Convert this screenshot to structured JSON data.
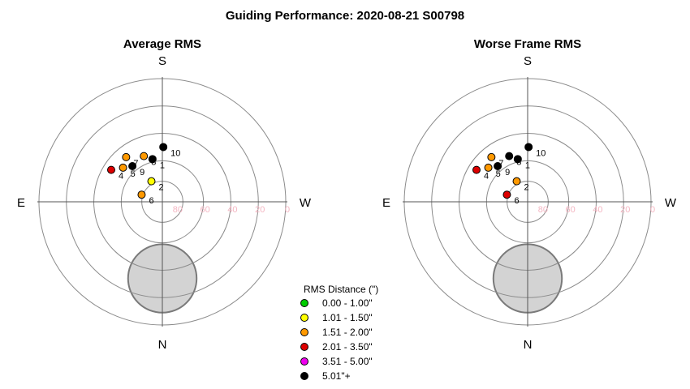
{
  "title": "Guiding Performance: 2020-08-21 S00798",
  "colors": {
    "ring": "#8c8c8c",
    "axis": "#555555",
    "tick_label": "#f4b6c2",
    "moon_fill": "#d3d3d3",
    "moon_edge": "#7a7a7a"
  },
  "legend": {
    "title": "RMS Distance (\")",
    "items": [
      {
        "label": "0.00 - 1.00\"",
        "color": "#00cc00"
      },
      {
        "label": "1.01 - 1.50\"",
        "color": "#ffff00"
      },
      {
        "label": "1.51 - 2.00\"",
        "color": "#ff9900"
      },
      {
        "label": "2.01 - 3.50\"",
        "color": "#dd0000"
      },
      {
        "label": "3.51 - 5.00\"",
        "color": "#ee00ee"
      },
      {
        "label": "5.01\"+",
        "color": "#000000"
      }
    ]
  },
  "chart_data": [
    {
      "type": "scatter",
      "projection": "polar altitude-azimuth",
      "title": "Average RMS",
      "directions": {
        "top": "S",
        "bottom": "N",
        "left": "E",
        "right": "W"
      },
      "radial_ticks": [
        "80",
        "60",
        "40",
        "20",
        "0"
      ],
      "r_axis": {
        "label_positions": [
          80,
          60,
          40,
          20,
          0
        ],
        "rings": [
          75,
          60,
          40,
          20,
          0
        ],
        "range": [
          90,
          0
        ]
      },
      "moon": {
        "altitude": 34,
        "azimuth": 180,
        "radius_deg": 25
      },
      "points": [
        {
          "label": "1",
          "altitude": 58,
          "azimuth": 13,
          "color": "#000000"
        },
        {
          "label": "2",
          "altitude": 73,
          "azimuth": 28,
          "color": "#ffff00"
        },
        {
          "label": "4",
          "altitude": 46,
          "azimuth": 58,
          "color": "#dd0000"
        },
        {
          "label": "5",
          "altitude": 52,
          "azimuth": 49,
          "color": "#ff9900"
        },
        {
          "label": "6",
          "altitude": 74,
          "azimuth": 71,
          "color": "#ff9900"
        },
        {
          "label": "7",
          "altitude": 48,
          "azimuth": 39,
          "color": "#ff9900"
        },
        {
          "label": "8",
          "altitude": 54,
          "azimuth": 22,
          "color": "#ff9900"
        },
        {
          "label": "9",
          "altitude": 56,
          "azimuth": 40,
          "color": "#000000"
        },
        {
          "label": "10",
          "altitude": 50,
          "azimuth": 359,
          "color": "#000000"
        }
      ]
    },
    {
      "type": "scatter",
      "projection": "polar altitude-azimuth",
      "title": "Worse Frame RMS",
      "directions": {
        "top": "S",
        "bottom": "N",
        "left": "E",
        "right": "W"
      },
      "radial_ticks": [
        "80",
        "60",
        "40",
        "20",
        "0"
      ],
      "r_axis": {
        "label_positions": [
          80,
          60,
          40,
          20,
          0
        ],
        "rings": [
          75,
          60,
          40,
          20,
          0
        ],
        "range": [
          90,
          0
        ]
      },
      "moon": {
        "altitude": 34,
        "azimuth": 180,
        "radius_deg": 25
      },
      "points": [
        {
          "label": "1",
          "altitude": 58,
          "azimuth": 13,
          "color": "#000000"
        },
        {
          "label": "2",
          "altitude": 73,
          "azimuth": 28,
          "color": "#ff9900"
        },
        {
          "label": "4",
          "altitude": 46,
          "azimuth": 58,
          "color": "#dd0000"
        },
        {
          "label": "5",
          "altitude": 52,
          "azimuth": 49,
          "color": "#ff9900"
        },
        {
          "label": "6",
          "altitude": 74,
          "azimuth": 71,
          "color": "#dd0000"
        },
        {
          "label": "7",
          "altitude": 48,
          "azimuth": 39,
          "color": "#ff9900"
        },
        {
          "label": "8",
          "altitude": 54,
          "azimuth": 22,
          "color": "#000000"
        },
        {
          "label": "9",
          "altitude": 56,
          "azimuth": 40,
          "color": "#000000"
        },
        {
          "label": "10",
          "altitude": 50,
          "azimuth": 359,
          "color": "#000000"
        }
      ]
    }
  ]
}
